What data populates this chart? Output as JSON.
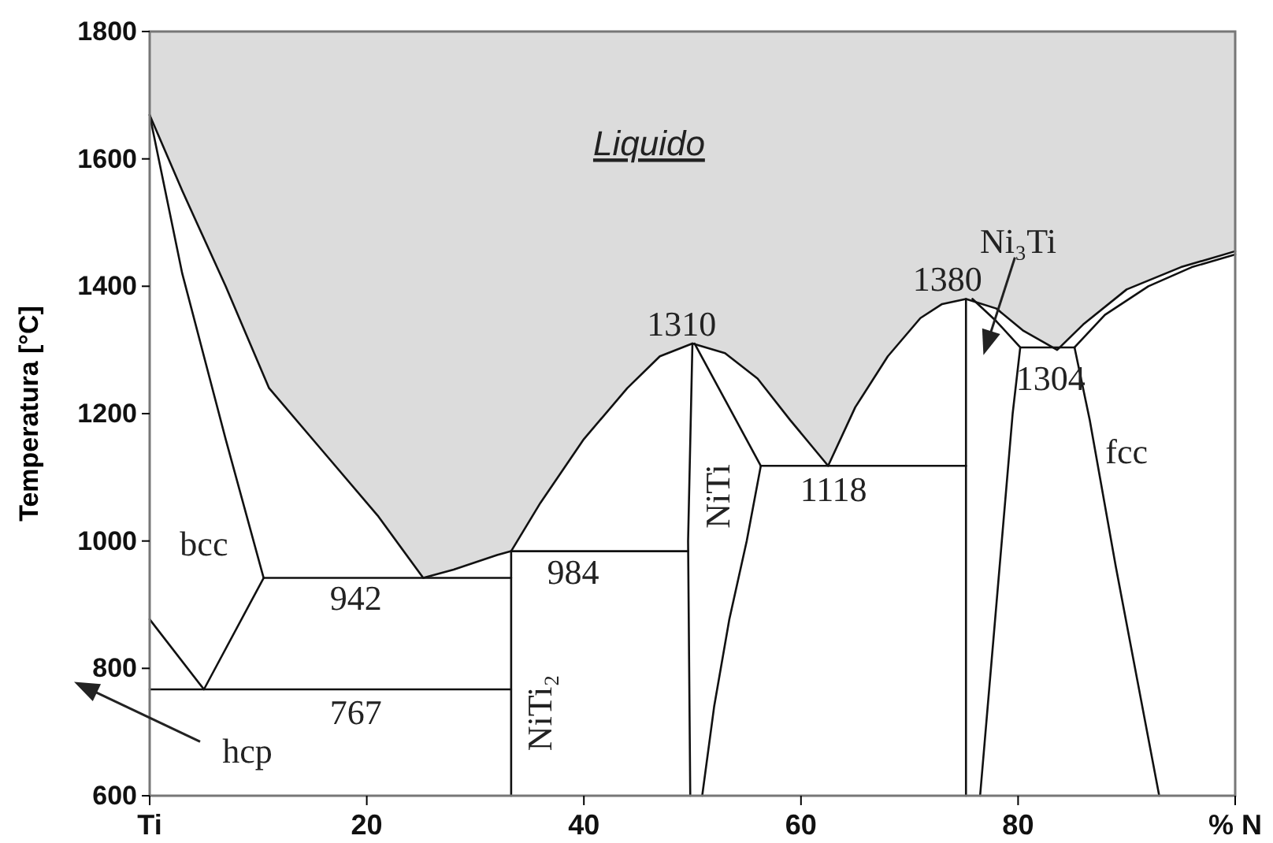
{
  "chart_data": {
    "type": "line",
    "ylabel": "Temperatura [°C]",
    "xlim": [
      0,
      100
    ],
    "ylim": [
      600,
      1800
    ],
    "xticks": [
      {
        "value": 0,
        "label": "Ti"
      },
      20,
      40,
      60,
      80,
      {
        "value": 100,
        "label": "% N"
      }
    ],
    "yticks": [
      600,
      800,
      1000,
      1200,
      1400,
      1600,
      1800
    ],
    "grid": false,
    "series": [
      {
        "color": "#111111",
        "x": [
          0,
          3,
          7,
          11,
          16,
          21,
          25.2,
          28,
          32,
          33.3,
          36,
          40,
          44,
          47,
          50,
          53,
          56,
          59,
          62.5,
          65,
          68,
          71,
          73,
          75.2,
          78,
          80.5,
          83.6,
          86,
          90,
          95,
          100
        ],
        "values": [
          1669,
          1550,
          1400,
          1240,
          1140,
          1040,
          942,
          955,
          978,
          984,
          1060,
          1160,
          1240,
          1290,
          1310,
          1295,
          1255,
          1190,
          1118,
          1210,
          1290,
          1350,
          1372,
          1380,
          1365,
          1330,
          1300,
          1340,
          1395,
          1430,
          1455
        ],
        "lower": [
          1669,
          1550,
          1400,
          1240,
          1140,
          1040,
          942,
          955,
          978,
          984,
          1060,
          1160,
          1240,
          1290,
          1310,
          1295,
          1255,
          1190,
          1118,
          1210,
          1290,
          1350,
          1372,
          1380,
          1365,
          1330,
          1300,
          1340,
          1395,
          1430,
          1455
        ],
        "upper": [
          1800,
          1800,
          1800,
          1800,
          1800,
          1800,
          1800,
          1800,
          1800,
          1800,
          1800,
          1800,
          1800,
          1800,
          1800,
          1800,
          1800,
          1800,
          1800,
          1800,
          1800,
          1800,
          1800,
          1800,
          1800,
          1800,
          1800,
          1800,
          1800,
          1800,
          1800
        ]
      },
      {
        "color": "#111111",
        "x": [
          0,
          3,
          7,
          10.5
        ],
        "values": [
          1669,
          1420,
          1160,
          942
        ]
      },
      {
        "color": "#111111",
        "x": [
          0,
          5,
          10.5
        ],
        "values": [
          877,
          767,
          942
        ]
      },
      {
        "color": "#111111",
        "x": [
          10.5,
          33.3
        ],
        "values": [
          942,
          942
        ]
      },
      {
        "color": "#111111",
        "x": [
          0,
          33.3
        ],
        "values": [
          767,
          767
        ]
      },
      {
        "color": "#111111",
        "x": [
          33.3,
          49.6
        ],
        "values": [
          984,
          984
        ]
      },
      {
        "color": "#111111",
        "x": [
          33.3,
          33.3
        ],
        "values": [
          984,
          600
        ]
      },
      {
        "color": "#111111",
        "x": [
          50,
          49.6,
          49.8
        ],
        "values": [
          1310,
          1000,
          600
        ]
      },
      {
        "color": "#111111",
        "x": [
          50.2,
          56.3,
          55,
          53.4,
          52,
          50.9
        ],
        "values": [
          1310,
          1118,
          1000,
          877,
          740,
          600
        ]
      },
      {
        "color": "#111111",
        "x": [
          56.3,
          75.2
        ],
        "values": [
          1118,
          1118
        ]
      },
      {
        "color": "#111111",
        "x": [
          75.2,
          75.2
        ],
        "values": [
          1380,
          600
        ]
      },
      {
        "color": "#111111",
        "x": [
          75.8,
          78,
          80.2,
          79.5,
          78.5,
          77.5,
          76.5
        ],
        "values": [
          1380,
          1345,
          1304,
          1200,
          1000,
          800,
          600
        ]
      },
      {
        "color": "#111111",
        "x": [
          80.2,
          85.2
        ],
        "values": [
          1304,
          1304
        ]
      },
      {
        "color": "#111111",
        "x": [
          85.2,
          88,
          92,
          96,
          100
        ],
        "values": [
          1304,
          1355,
          1400,
          1430,
          1450
        ]
      },
      {
        "color": "#111111",
        "x": [
          85.2,
          86.6,
          89,
          91,
          93
        ],
        "values": [
          1304,
          1190,
          960,
          780,
          600
        ]
      }
    ],
    "annotations": [
      "Liquido",
      "bcc",
      "942",
      "984",
      "767",
      "hcp",
      "NiTi₂",
      "1310",
      "NiTi",
      "1118",
      "1380",
      "Ni₃Ti",
      "1304",
      "fcc"
    ]
  }
}
